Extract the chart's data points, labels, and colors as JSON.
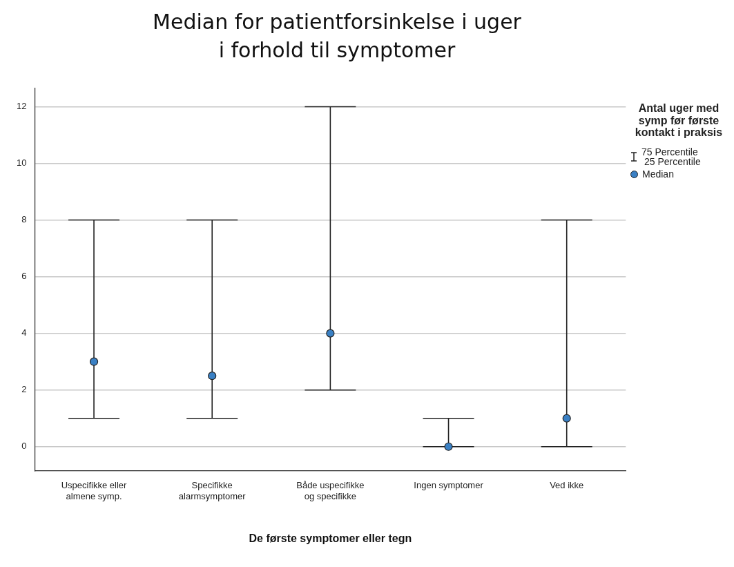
{
  "chart_data": {
    "type": "scatter",
    "title": "Median for patientforsinkelse i uger i forhold til symptomer",
    "xlabel": "De første symptomer eller tegn",
    "legend_title": "Antal uger med symp før første kontakt i praksis",
    "annotations": [
      "75 Percentile",
      "25 Percentile"
    ],
    "categories": [
      "Uspecifikke eller almene symp.",
      "Specifikke alarmsymptomer",
      "Både uspecifikke og specifikke",
      "Ingen symptomer",
      "Ved ikke"
    ],
    "series": [
      {
        "name": "Median",
        "color": "#3a80c4",
        "values": [
          3,
          2.5,
          4,
          0,
          1
        ],
        "errors": [
          [
            1,
            8
          ],
          [
            1,
            8
          ],
          [
            2,
            12
          ],
          [
            0,
            1
          ],
          [
            0,
            8
          ]
        ]
      }
    ],
    "ylim": [
      -0.85,
      12.65
    ],
    "yticks": [
      0,
      2,
      4,
      6,
      8,
      10,
      12
    ],
    "grid": "y",
    "legend": "right",
    "marker": "circle"
  }
}
